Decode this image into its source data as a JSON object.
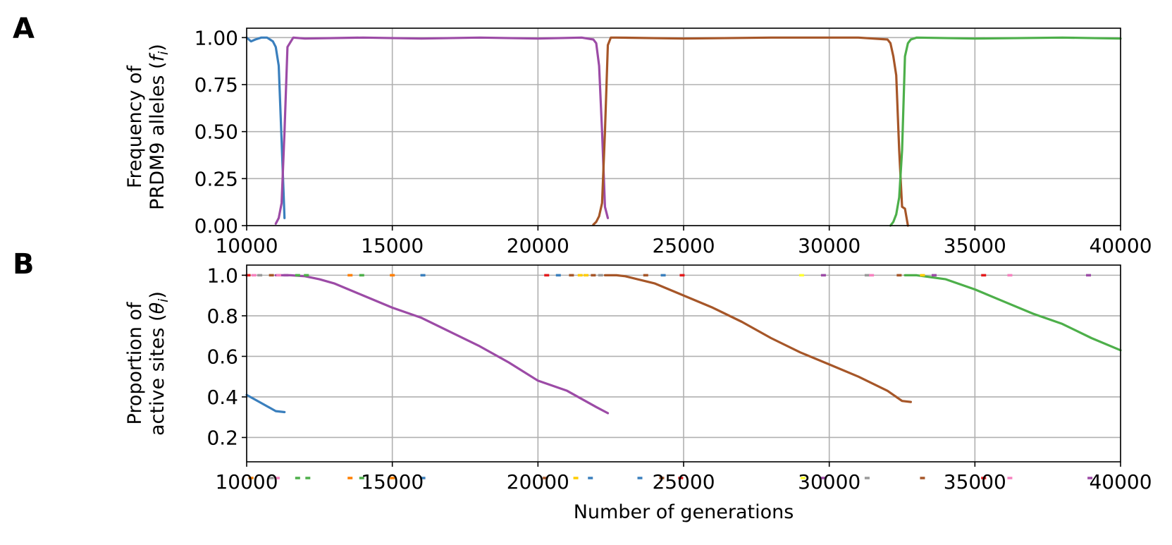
{
  "panel_labels": {
    "a": "A",
    "b": "B"
  },
  "chart_data": [
    {
      "panel": "A",
      "type": "line",
      "xlabel": "",
      "ylabel_line1": "Frequency of",
      "ylabel_line2_text": "PRDM9 alleles (",
      "ylabel_line2_var": "f",
      "ylabel_line2_sub": "i",
      "ylabel_line2_end": ")",
      "xlim": [
        10000,
        40000
      ],
      "ylim": [
        0,
        1.05
      ],
      "xticks": [
        10000,
        15000,
        20000,
        25000,
        30000,
        35000,
        40000
      ],
      "xtick_labels": [
        "10000",
        "15000",
        "20000",
        "25000",
        "30000",
        "35000",
        "40000"
      ],
      "yticks": [
        0,
        0.25,
        0.5,
        0.75,
        1.0
      ],
      "ytick_labels": [
        "0.00",
        "0.25",
        "0.50",
        "0.75",
        "1.00"
      ],
      "grid": true,
      "series": [
        {
          "color": "#3a7fbd",
          "x": [
            10000,
            10150,
            10300,
            10500,
            10700,
            10800,
            10900,
            11000,
            11100,
            11200,
            11300
          ],
          "y": [
            1.0,
            0.98,
            0.99,
            1.0,
            1.0,
            0.99,
            0.98,
            0.95,
            0.85,
            0.45,
            0.04
          ]
        },
        {
          "color": "#9c4ba6",
          "x": [
            11000,
            11100,
            11200,
            11300,
            11400,
            11600,
            12000,
            14000,
            16000,
            18000,
            20000,
            21500,
            21900,
            22000,
            22100,
            22200,
            22300,
            22400
          ],
          "y": [
            0.01,
            0.04,
            0.12,
            0.5,
            0.95,
            1.0,
            0.995,
            1.0,
            0.995,
            1.0,
            0.995,
            1.0,
            0.99,
            0.97,
            0.85,
            0.5,
            0.1,
            0.04
          ]
        },
        {
          "color": "#a65628",
          "x": [
            21900,
            22000,
            22100,
            22200,
            22300,
            22400,
            22500,
            22700,
            25000,
            28000,
            31000,
            32000,
            32100,
            32200,
            32300,
            32400,
            32500,
            32600,
            32700
          ],
          "y": [
            0.005,
            0.02,
            0.05,
            0.12,
            0.5,
            0.96,
            1.0,
            1.0,
            0.995,
            1.0,
            1.0,
            0.99,
            0.97,
            0.9,
            0.8,
            0.4,
            0.1,
            0.09,
            0.0
          ]
        },
        {
          "color": "#4daf4a",
          "x": [
            32100,
            32200,
            32300,
            32400,
            32500,
            32600,
            32700,
            32800,
            33000,
            35000,
            38000,
            40000
          ],
          "y": [
            0.0,
            0.02,
            0.06,
            0.15,
            0.4,
            0.9,
            0.97,
            0.99,
            1.0,
            0.995,
            1.0,
            0.995
          ]
        }
      ]
    },
    {
      "panel": "B",
      "type": "line",
      "xlabel": "Number of generations",
      "ylabel_line1": "Proportion of",
      "ylabel_line2_text": "active sites (",
      "ylabel_line2_var": "θ",
      "ylabel_line2_sub": "i",
      "ylabel_line2_end": ")",
      "xlim": [
        10000,
        40000
      ],
      "ylim": [
        0.08,
        1.05
      ],
      "xticks": [
        10000,
        15000,
        20000,
        25000,
        30000,
        35000,
        40000
      ],
      "xtick_labels": [
        "10000",
        "15000",
        "20000",
        "25000",
        "30000",
        "35000",
        "40000"
      ],
      "yticks": [
        0.2,
        0.4,
        0.6,
        0.8,
        1.0
      ],
      "ytick_labels": [
        "0.2",
        "0.4",
        "0.6",
        "0.8",
        "1.0"
      ],
      "grid": true,
      "series": [
        {
          "color": "#3a7fbd",
          "x": [
            10000,
            10500,
            11000,
            11300
          ],
          "y": [
            0.41,
            0.37,
            0.33,
            0.325
          ]
        },
        {
          "color": "#9c4ba6",
          "x": [
            11000,
            11500,
            12000,
            12500,
            13000,
            14000,
            15000,
            16000,
            17000,
            18000,
            19000,
            20000,
            21000,
            22000,
            22400
          ],
          "y": [
            1.0,
            1.0,
            0.995,
            0.98,
            0.96,
            0.9,
            0.84,
            0.79,
            0.72,
            0.65,
            0.57,
            0.48,
            0.43,
            0.35,
            0.32
          ]
        },
        {
          "color": "#a65628",
          "x": [
            22300,
            22700,
            23000,
            24000,
            25000,
            26000,
            27000,
            28000,
            29000,
            30000,
            31000,
            32000,
            32500,
            32800
          ],
          "y": [
            1.0,
            1.0,
            0.995,
            0.96,
            0.9,
            0.84,
            0.77,
            0.69,
            0.62,
            0.56,
            0.5,
            0.43,
            0.38,
            0.375
          ]
        },
        {
          "color": "#4daf4a",
          "x": [
            32600,
            33000,
            34000,
            35000,
            36000,
            37000,
            38000,
            39000,
            40000
          ],
          "y": [
            1.0,
            1.0,
            0.98,
            0.93,
            0.87,
            0.81,
            0.76,
            0.69,
            0.63
          ]
        }
      ],
      "markers_at_1": [
        {
          "x": 10050,
          "color": "#e41a1c"
        },
        {
          "x": 10250,
          "color": "#f781bf"
        },
        {
          "x": 10450,
          "color": "#999999"
        },
        {
          "x": 10850,
          "color": "#a65628"
        },
        {
          "x": 11100,
          "color": "#f781bf"
        },
        {
          "x": 11350,
          "color": "#9c4ba6"
        },
        {
          "x": 11750,
          "color": "#4daf4a"
        },
        {
          "x": 12050,
          "color": "#4daf4a"
        },
        {
          "x": 13550,
          "color": "#ff7f00"
        },
        {
          "x": 13950,
          "color": "#4daf4a"
        },
        {
          "x": 15000,
          "color": "#ff7f00"
        },
        {
          "x": 16050,
          "color": "#3a7fbd"
        },
        {
          "x": 20300,
          "color": "#e41a1c"
        },
        {
          "x": 20700,
          "color": "#3a7fbd"
        },
        {
          "x": 21150,
          "color": "#a65628"
        },
        {
          "x": 21450,
          "color": "#ffcc00"
        },
        {
          "x": 21650,
          "color": "#ffcc00"
        },
        {
          "x": 21900,
          "color": "#a65628"
        },
        {
          "x": 22150,
          "color": "#999999"
        },
        {
          "x": 23700,
          "color": "#a65628"
        },
        {
          "x": 24300,
          "color": "#3a7fbd"
        },
        {
          "x": 24950,
          "color": "#e41a1c"
        },
        {
          "x": 29050,
          "color": "#ffff33"
        },
        {
          "x": 29800,
          "color": "#9c4ba6"
        },
        {
          "x": 31300,
          "color": "#999999"
        },
        {
          "x": 31450,
          "color": "#f781bf"
        },
        {
          "x": 32400,
          "color": "#a65628"
        },
        {
          "x": 33200,
          "color": "#ffcc00"
        },
        {
          "x": 33600,
          "color": "#9c4ba6"
        },
        {
          "x": 35300,
          "color": "#e41a1c"
        },
        {
          "x": 36200,
          "color": "#f781bf"
        },
        {
          "x": 38900,
          "color": "#9c4ba6"
        }
      ],
      "markers_at_0": [
        {
          "x": 10150,
          "color": "#ff7f00"
        },
        {
          "x": 10850,
          "color": "#999999"
        },
        {
          "x": 11050,
          "color": "#f781bf"
        },
        {
          "x": 11750,
          "color": "#4daf4a"
        },
        {
          "x": 12100,
          "color": "#4daf4a"
        },
        {
          "x": 13550,
          "color": "#ff7f00"
        },
        {
          "x": 13950,
          "color": "#4daf4a"
        },
        {
          "x": 15000,
          "color": "#ff7f00"
        },
        {
          "x": 16050,
          "color": "#3a7fbd"
        },
        {
          "x": 20250,
          "color": "#a65628"
        },
        {
          "x": 21300,
          "color": "#ffcc00"
        },
        {
          "x": 21800,
          "color": "#3a7fbd"
        },
        {
          "x": 23500,
          "color": "#3a7fbd"
        },
        {
          "x": 24250,
          "color": "#a65628"
        },
        {
          "x": 24900,
          "color": "#e41a1c"
        },
        {
          "x": 29100,
          "color": "#ffff33"
        },
        {
          "x": 29800,
          "color": "#9c4ba6"
        },
        {
          "x": 31300,
          "color": "#999999"
        },
        {
          "x": 33200,
          "color": "#a65628"
        },
        {
          "x": 35300,
          "color": "#e41a1c"
        },
        {
          "x": 36200,
          "color": "#f781bf"
        },
        {
          "x": 38950,
          "color": "#9c4ba6"
        }
      ]
    }
  ]
}
